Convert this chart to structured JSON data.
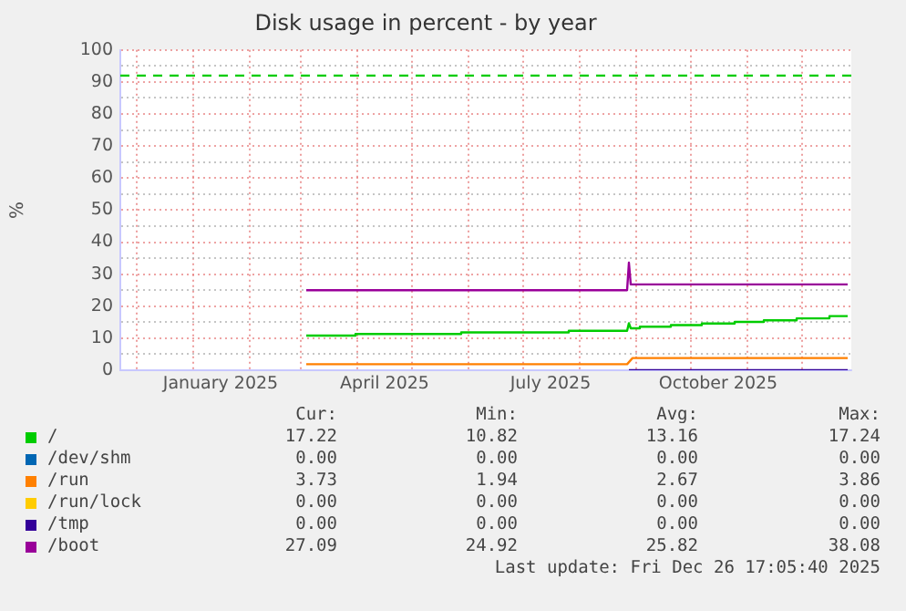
{
  "chart_data": {
    "type": "line",
    "title": "Disk usage in percent - by year",
    "ylabel": "%",
    "xlim": [
      "2024-11-22",
      "2025-12-28"
    ],
    "xticks": [
      {
        "value": "2024-12-01",
        "label": null
      },
      {
        "value": "2025-01-01",
        "label": null
      },
      {
        "value": "2025-01-16",
        "label": "January 2025"
      },
      {
        "value": "2025-02-01",
        "label": null
      },
      {
        "value": "2025-03-01",
        "label": null
      },
      {
        "value": "2025-04-01",
        "label": null
      },
      {
        "value": "2025-04-16",
        "label": "April 2025"
      },
      {
        "value": "2025-05-01",
        "label": null
      },
      {
        "value": "2025-06-01",
        "label": null
      },
      {
        "value": "2025-07-01",
        "label": null
      },
      {
        "value": "2025-07-16",
        "label": "July 2025"
      },
      {
        "value": "2025-08-01",
        "label": null
      },
      {
        "value": "2025-09-01",
        "label": null
      },
      {
        "value": "2025-10-01",
        "label": null
      },
      {
        "value": "2025-10-16",
        "label": "October 2025"
      },
      {
        "value": "2025-11-01",
        "label": null
      },
      {
        "value": "2025-12-01",
        "label": null
      }
    ],
    "ylim": [
      0,
      100
    ],
    "yticks": [
      0,
      {
        "value": 5,
        "label": null
      },
      10,
      {
        "value": 15,
        "label": null
      },
      20,
      {
        "value": 25,
        "label": null
      },
      30,
      {
        "value": 35,
        "label": null
      },
      40,
      {
        "value": 45,
        "label": null
      },
      50,
      {
        "value": 55,
        "label": null
      },
      60,
      {
        "value": 65,
        "label": null
      },
      70,
      {
        "value": 75,
        "label": null
      },
      80,
      {
        "value": 85,
        "label": null
      },
      90,
      {
        "value": 95,
        "label": null
      },
      100
    ],
    "grid": true,
    "legend": "bottom",
    "ref_lines": [
      {
        "axis": "y",
        "value": 92,
        "label": null,
        "color": "#00cc00",
        "line_style": "dashed"
      }
    ],
    "series": [
      {
        "name": "/",
        "color": "#00cc00",
        "x": [
          "2025-03-04",
          "2025-03-31",
          "2025-03-31",
          "2025-05-28",
          "2025-05-28",
          "2025-07-26",
          "2025-07-26",
          "2025-08-27",
          "2025-08-28",
          "2025-08-29",
          "2025-09-03",
          "2025-09-03",
          "2025-09-20",
          "2025-09-20",
          "2025-10-07",
          "2025-10-07",
          "2025-10-25",
          "2025-10-25",
          "2025-11-10",
          "2025-11-10",
          "2025-11-28",
          "2025-11-28",
          "2025-12-16",
          "2025-12-16",
          "2025-12-26"
        ],
        "values": [
          10.8,
          10.8,
          11.3,
          11.3,
          11.8,
          11.8,
          12.3,
          12.3,
          14.7,
          13.1,
          13.1,
          13.6,
          13.6,
          14.1,
          14.1,
          14.6,
          14.6,
          15.1,
          15.1,
          15.6,
          15.6,
          16.2,
          16.2,
          16.9,
          16.9
        ]
      },
      {
        "name": "/dev/shm",
        "color": "#0066b3"
      },
      {
        "name": "/run",
        "color": "#ff8000",
        "x": [
          "2025-03-04",
          "2025-08-27",
          "2025-08-30",
          "2025-12-26"
        ],
        "values": [
          1.9,
          1.9,
          3.8,
          3.8
        ]
      },
      {
        "name": "/run/lock",
        "color": "#ffcc00"
      },
      {
        "name": "/tmp",
        "color": "#330099",
        "x": [
          "2025-08-28",
          "2025-12-26"
        ],
        "values": [
          0,
          0
        ]
      },
      {
        "name": "/boot",
        "color": "#990099",
        "x": [
          "2025-03-04",
          "2025-08-27",
          "2025-08-28",
          "2025-08-29",
          "2025-12-26"
        ],
        "values": [
          25,
          25,
          33.6,
          26.8,
          26.8
        ]
      }
    ],
    "annotations": [
      "Cur:",
      "Min:",
      "Avg:",
      "Max:",
      "17.22",
      "10.82",
      "13.16",
      "17.24",
      "0.00",
      "0.00",
      "0.00",
      "0.00",
      "3.73",
      "1.94",
      "2.67",
      "3.86",
      "0.00",
      "0.00",
      "0.00",
      "0.00",
      "0.00",
      "0.00",
      "0.00",
      "0.00",
      "27.09",
      "24.92",
      "25.82",
      "38.08",
      "Last update: Fri Dec 26 17:05:40 2025"
    ]
  }
}
